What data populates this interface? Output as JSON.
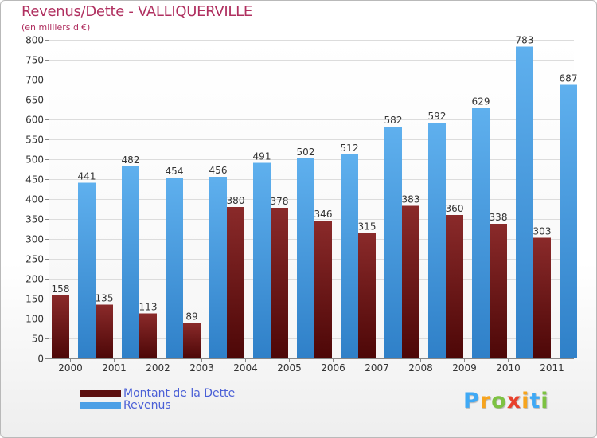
{
  "title": "Revenus/Dette - VALLIQUERVILLE",
  "subtitle": "(en milliers d'€)",
  "chart_data": {
    "type": "bar",
    "categories": [
      "2000",
      "2001",
      "2002",
      "2003",
      "2004",
      "2005",
      "2006",
      "2007",
      "2008",
      "2009",
      "2010",
      "2011"
    ],
    "series": [
      {
        "name": "Montant de la Dette",
        "values": [
          158,
          135,
          113,
          89,
          380,
          378,
          346,
          315,
          383,
          360,
          338,
          303
        ],
        "color": "#7a1e1e"
      },
      {
        "name": "Revenus",
        "values": [
          441,
          482,
          454,
          456,
          491,
          502,
          512,
          582,
          592,
          629,
          783,
          687
        ],
        "color": "#4da0e6"
      }
    ],
    "yticks": [
      0,
      50,
      100,
      150,
      200,
      250,
      300,
      350,
      400,
      450,
      500,
      550,
      600,
      650,
      700,
      750,
      800
    ],
    "ylim": [
      0,
      800
    ],
    "grid": true
  },
  "legend": [
    {
      "label": "Montant de la Dette",
      "color": "#5c0f0f"
    },
    {
      "label": "Revenus",
      "color": "#4da0e6"
    }
  ],
  "logo": {
    "letters": [
      "P",
      "r",
      "o",
      "x",
      "i",
      "t",
      "i"
    ],
    "colors": [
      "#3fa9f5",
      "#f7a41d",
      "#7dc242",
      "#e8412c",
      "#f7a41d",
      "#3fa9f5",
      "#7dc242"
    ]
  }
}
